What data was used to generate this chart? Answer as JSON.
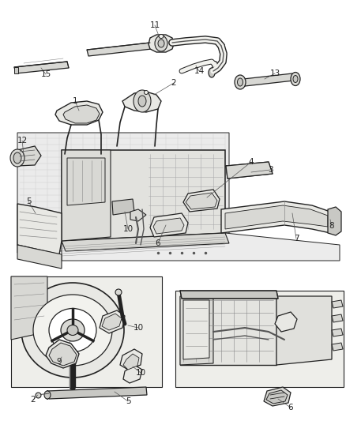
{
  "figsize": [
    4.38,
    5.33
  ],
  "dpi": 100,
  "bg": "#f5f5f0",
  "lc": "#222222",
  "lc_light": "#888888",
  "lc_mid": "#555555",
  "fill_light": "#e8e8e4",
  "fill_mid": "#d8d8d4",
  "fill_dark": "#c8c8c4",
  "fill_white": "#f2f2ee",
  "lw_thick": 1.4,
  "lw_mid": 0.9,
  "lw_thin": 0.5,
  "label_fs": 7.5
}
